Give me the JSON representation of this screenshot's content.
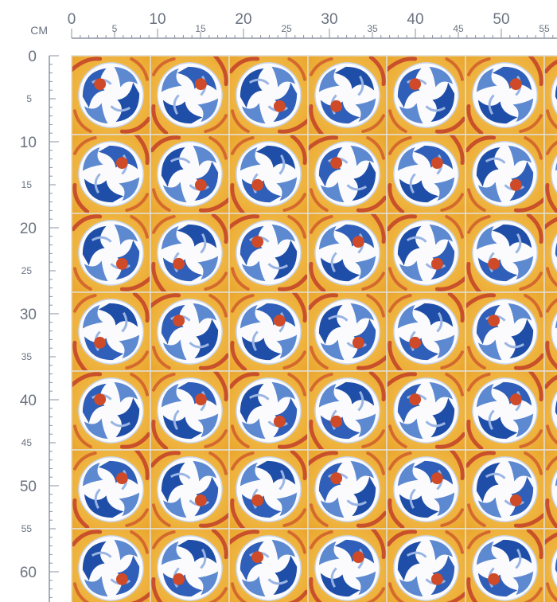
{
  "ruler": {
    "unit": "CM",
    "top_labels": [
      0,
      5,
      10,
      15,
      20,
      25,
      30,
      35,
      40,
      45,
      50,
      55
    ],
    "left_labels": [
      0,
      5,
      10,
      15,
      20,
      25,
      30,
      35,
      40,
      45,
      50,
      55,
      60
    ]
  }
}
